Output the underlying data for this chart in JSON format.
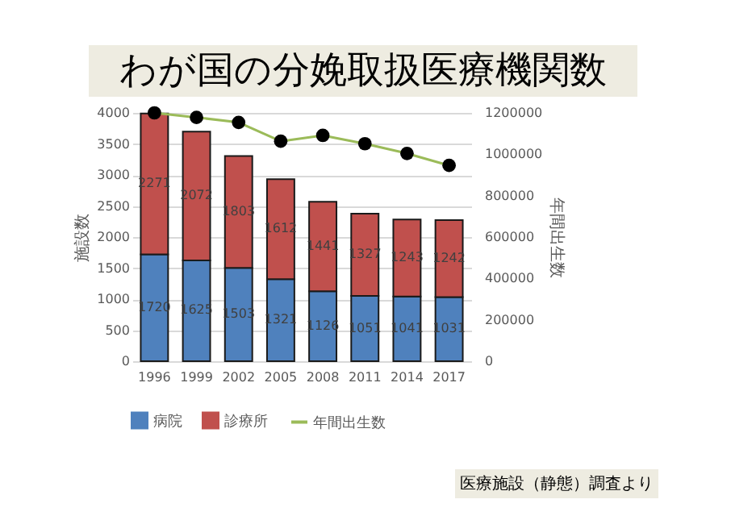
{
  "chart_data": {
    "type": "bar",
    "title": "わが国の分娩取扱医療機関数",
    "ylabel": "施設数",
    "y2label": "年間出生数",
    "annotations": [
      "医療施設（静態）調査より"
    ],
    "categories": [
      "1996",
      "1999",
      "2002",
      "2005",
      "2008",
      "2011",
      "2014",
      "2017"
    ],
    "stacked": true,
    "grid": "y",
    "legend": "bottom",
    "ylim": [
      0,
      4000
    ],
    "yticks": [
      0,
      500,
      1000,
      1500,
      2000,
      2500,
      3000,
      3500,
      4000
    ],
    "y2lim": [
      0,
      1200000
    ],
    "y2ticks": [
      0,
      200000,
      400000,
      600000,
      800000,
      1000000,
      1200000
    ],
    "series": [
      {
        "name": "病院",
        "color": "#4f81bd",
        "values": [
          1720,
          1625,
          1503,
          1321,
          1126,
          1051,
          1041,
          1031
        ],
        "value_labels": [
          "1720",
          "1625",
          "1503",
          "1321",
          "1126",
          "1051",
          "1041",
          "1031"
        ]
      },
      {
        "name": "診療所",
        "color": "#c0504d",
        "values": [
          2271,
          2072,
          1803,
          1612,
          1441,
          1327,
          1243,
          1242
        ],
        "value_labels": [
          "2271",
          "2072",
          "1803",
          "1612",
          "1441",
          "1327",
          "1243",
          "1242"
        ]
      },
      {
        "name": "年間出生数",
        "type": "line",
        "axis": "y2",
        "marker": "circle",
        "color": "#9bbb59",
        "values": [
          1200000,
          1178000,
          1154000,
          1063000,
          1091000,
          1051000,
          1004000,
          946000
        ]
      }
    ]
  }
}
